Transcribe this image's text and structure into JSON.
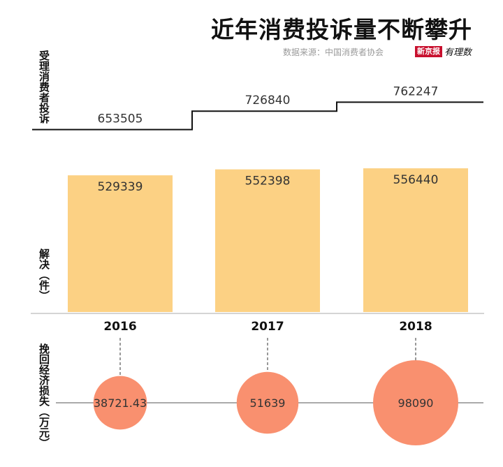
{
  "title": "近年消费投诉量不断攀升",
  "source": "数据来源：中国消费者协会",
  "logo": {
    "box": "新京报",
    "script": "有理数"
  },
  "labels": {
    "received": "受理消费者投诉",
    "resolved": "解决（件）",
    "recovered": "挽回经济损失（万元）"
  },
  "chart_data": {
    "type": "bar",
    "categories": [
      "2016",
      "2017",
      "2018"
    ],
    "received": [
      653505,
      726840,
      762247
    ],
    "resolved": [
      529339,
      552398,
      556440
    ],
    "recovered": [
      38721.43,
      51639,
      98090
    ],
    "colors": {
      "bar": "#fcd184",
      "bubble": "#f9906f",
      "line": "#111111",
      "axis": "#aaaaaa"
    }
  }
}
